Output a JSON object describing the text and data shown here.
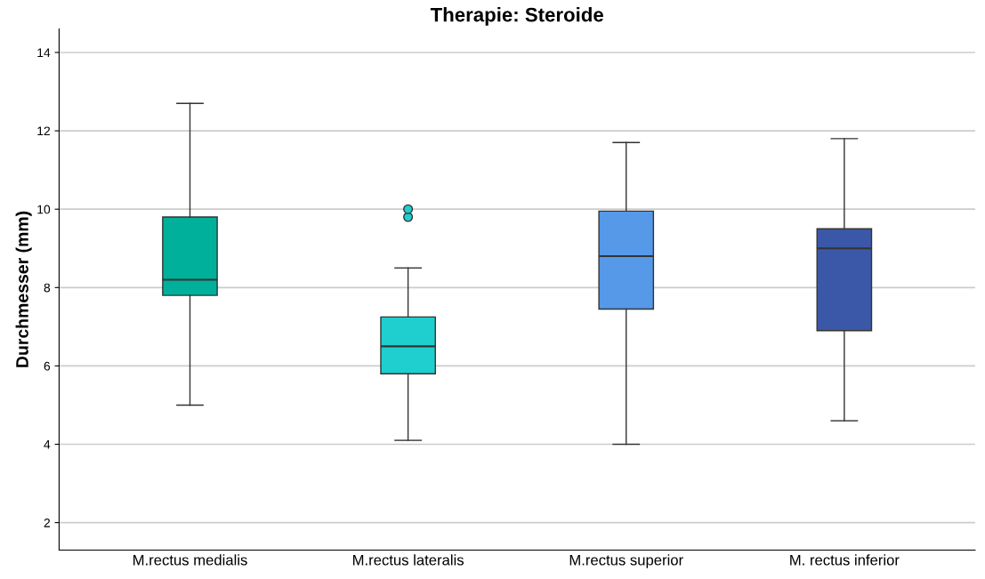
{
  "chart_data": {
    "type": "box",
    "title": "Therapie: Steroide",
    "ylabel": "Durchmesser (mm)",
    "categories": [
      "M.rectus medialis",
      "M.rectus lateralis",
      "M.rectus superior",
      "M. rectus inferior"
    ],
    "colors": [
      "#00b09b",
      "#1fcfcf",
      "#5599e8",
      "#3b58a8"
    ],
    "boxes": [
      {
        "low": 5.0,
        "q1": 7.8,
        "median": 8.2,
        "q3": 9.8,
        "high": 12.7
      },
      {
        "low": 4.1,
        "q1": 5.8,
        "median": 6.5,
        "q3": 7.25,
        "high": 8.5,
        "outliers": [
          9.8,
          10.0
        ]
      },
      {
        "low": 4.0,
        "q1": 7.45,
        "median": 8.8,
        "q3": 9.95,
        "high": 11.7
      },
      {
        "low": 4.6,
        "q1": 6.9,
        "median": 9.0,
        "q3": 9.5,
        "high": 11.8
      }
    ],
    "ylim": [
      1.3,
      14.6
    ],
    "yticks": [
      2,
      4,
      6,
      8,
      10,
      12,
      14
    ],
    "grid": "y"
  }
}
